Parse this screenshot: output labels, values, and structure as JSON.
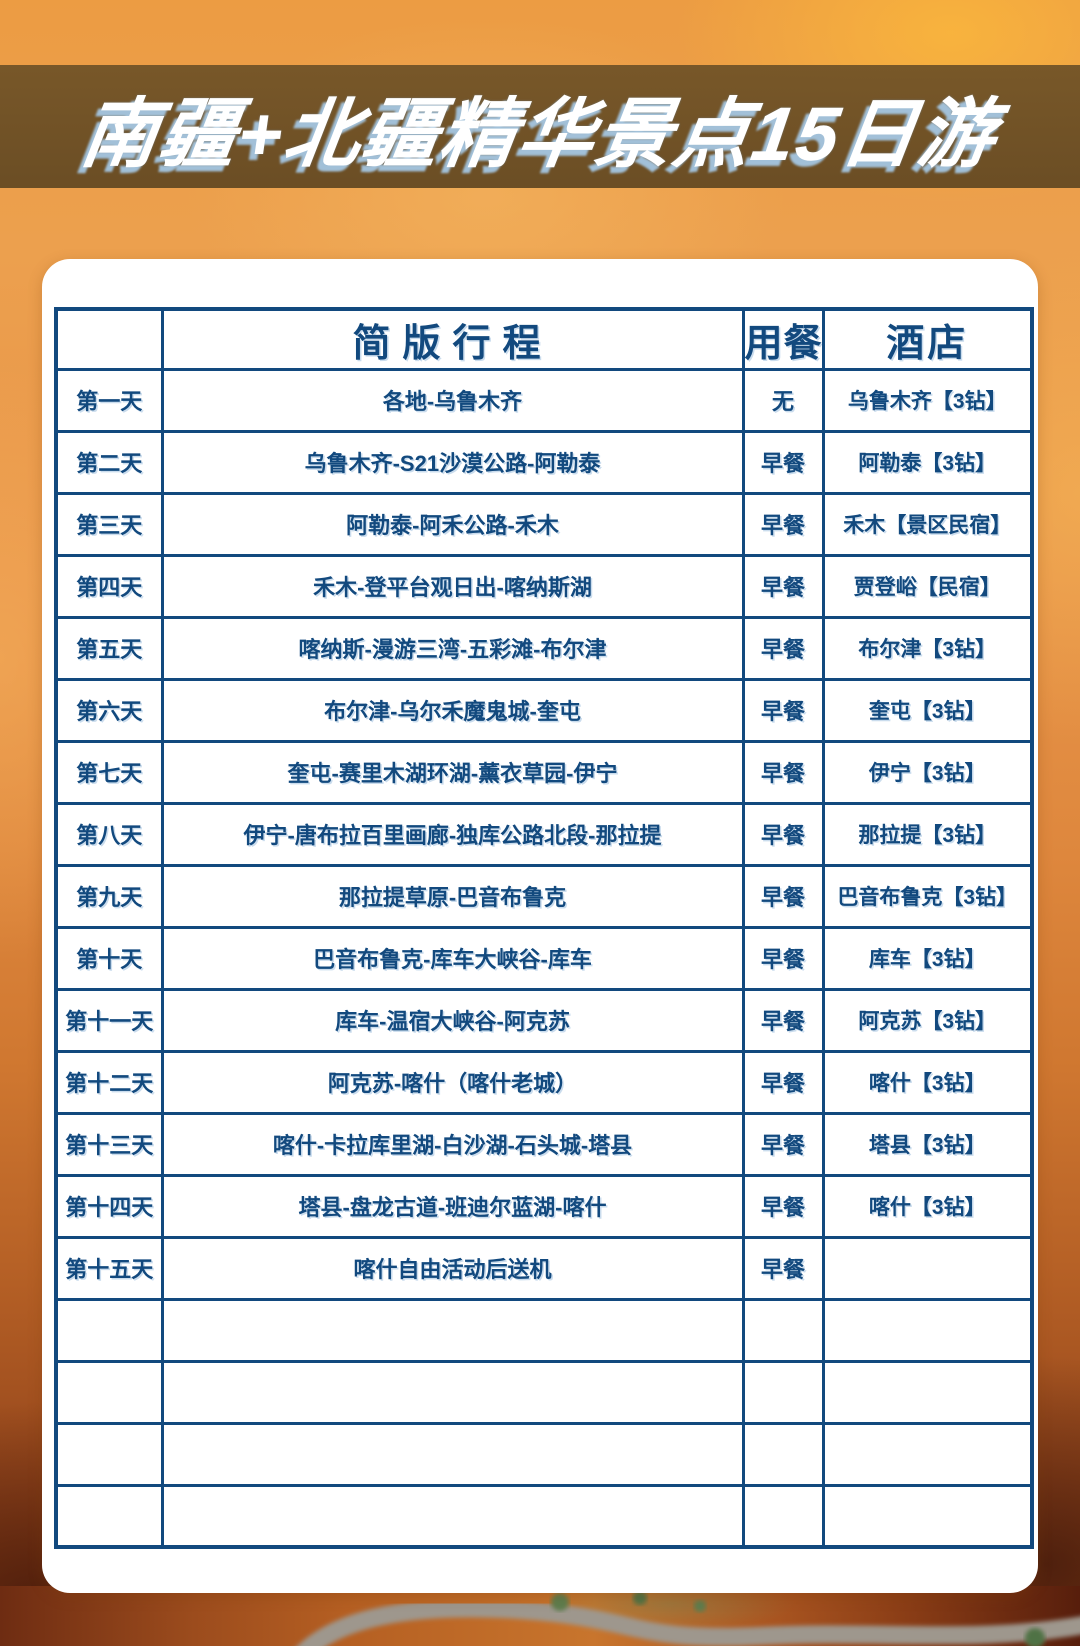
{
  "title": {
    "text": "南疆+北疆精华景点15日游"
  },
  "table": {
    "columns": [
      {
        "key": "day",
        "label": ""
      },
      {
        "key": "itinerary",
        "label": "简版行程"
      },
      {
        "key": "meals",
        "label": "用餐"
      },
      {
        "key": "hotel",
        "label": "酒店"
      }
    ],
    "rows": [
      {
        "day": "第一天",
        "itinerary": "各地-乌鲁木齐",
        "meals": "无",
        "hotel": "乌鲁木齐【3钻】"
      },
      {
        "day": "第二天",
        "itinerary": "乌鲁木齐-S21沙漠公路-阿勒泰",
        "meals": "早餐",
        "hotel": "阿勒泰【3钻】"
      },
      {
        "day": "第三天",
        "itinerary": "阿勒泰-阿禾公路-禾木",
        "meals": "早餐",
        "hotel": "禾木【景区民宿】"
      },
      {
        "day": "第四天",
        "itinerary": "禾木-登平台观日出-喀纳斯湖",
        "meals": "早餐",
        "hotel": "贾登峪【民宿】"
      },
      {
        "day": "第五天",
        "itinerary": "喀纳斯-漫游三湾-五彩滩-布尔津",
        "meals": "早餐",
        "hotel": "布尔津【3钻】"
      },
      {
        "day": "第六天",
        "itinerary": "布尔津-乌尔禾魔鬼城-奎屯",
        "meals": "早餐",
        "hotel": "奎屯【3钻】"
      },
      {
        "day": "第七天",
        "itinerary": "奎屯-赛里木湖环湖-薰衣草园-伊宁",
        "meals": "早餐",
        "hotel": "伊宁【3钻】"
      },
      {
        "day": "第八天",
        "itinerary": "伊宁-唐布拉百里画廊-独库公路北段-那拉提",
        "meals": "早餐",
        "hotel": "那拉提【3钻】"
      },
      {
        "day": "第九天",
        "itinerary": "那拉提草原-巴音布鲁克",
        "meals": "早餐",
        "hotel": "巴音布鲁克【3钻】"
      },
      {
        "day": "第十天",
        "itinerary": "巴音布鲁克-库车大峡谷-库车",
        "meals": "早餐",
        "hotel": "库车【3钻】"
      },
      {
        "day": "第十一天",
        "itinerary": "库车-温宿大峡谷-阿克苏",
        "meals": "早餐",
        "hotel": "阿克苏【3钻】"
      },
      {
        "day": "第十二天",
        "itinerary": "阿克苏-喀什（喀什老城）",
        "meals": "早餐",
        "hotel": "喀什【3钻】"
      },
      {
        "day": "第十三天",
        "itinerary": "喀什-卡拉库里湖-白沙湖-石头城-塔县",
        "meals": "早餐",
        "hotel": "塔县【3钻】"
      },
      {
        "day": "第十四天",
        "itinerary": "塔县-盘龙古道-班迪尔蓝湖-喀什",
        "meals": "早餐",
        "hotel": "喀什【3钻】"
      },
      {
        "day": "第十五天",
        "itinerary": "喀什自由活动后送机",
        "meals": "早餐",
        "hotel": ""
      }
    ],
    "empty_row_count": 4
  },
  "colors": {
    "accent_navy": "#12497e",
    "band_brown": "#6f5226",
    "background_orange": "#e8954a",
    "card_white": "#ffffff"
  }
}
